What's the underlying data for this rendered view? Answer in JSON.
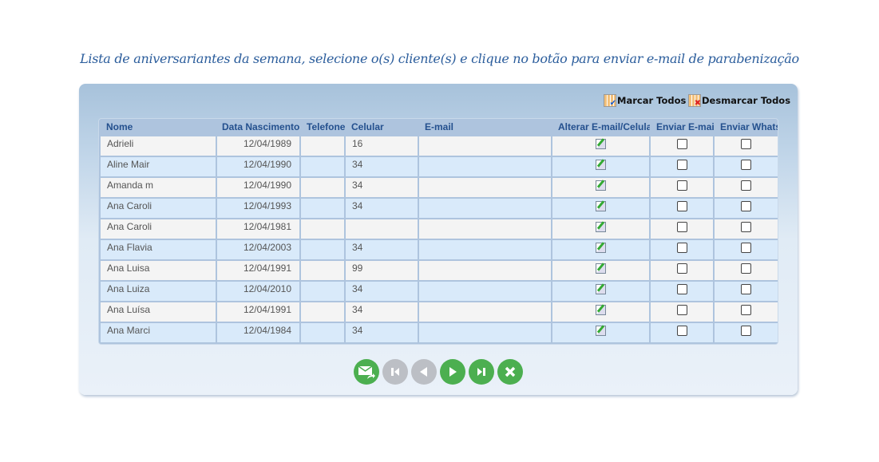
{
  "title": "Lista de aniversariantes da semana, selecione o(s) cliente(s) e clique no botão para enviar e-mail de parabenização",
  "toolbar": {
    "mark_all": "Marcar Todos",
    "unmark_all": "Desmarcar Todos"
  },
  "columns": [
    "Nome",
    "Data Nascimento",
    "Telefone",
    "Celular",
    "E-mail",
    "Alterar E-mail/Celular",
    "Enviar E-mail",
    "Enviar Whats"
  ],
  "rows": [
    {
      "nome": "Adrieli",
      "data": "12/04/1989",
      "telefone": "",
      "celular": "16",
      "email": ""
    },
    {
      "nome": "Aline Mair",
      "data": "12/04/1990",
      "telefone": "",
      "celular": "34",
      "email": ""
    },
    {
      "nome": "Amanda m",
      "data": "12/04/1990",
      "telefone": "",
      "celular": "34",
      "email": ""
    },
    {
      "nome": "Ana Caroli",
      "data": "12/04/1993",
      "telefone": "",
      "celular": "34",
      "email": ""
    },
    {
      "nome": "Ana Caroli",
      "data": "12/04/1981",
      "telefone": "",
      "celular": "",
      "email": ""
    },
    {
      "nome": "Ana Flavia",
      "data": "12/04/2003",
      "telefone": "",
      "celular": "34",
      "email": ""
    },
    {
      "nome": "Ana Luisa",
      "data": "12/04/1991",
      "telefone": "",
      "celular": "99",
      "email": ""
    },
    {
      "nome": "Ana Luiza",
      "data": "12/04/2010",
      "telefone": "",
      "celular": "34",
      "email": ""
    },
    {
      "nome": "Ana Luísa",
      "data": "12/04/1991",
      "telefone": "",
      "celular": "34",
      "email": ""
    },
    {
      "nome": "Ana Marci",
      "data": "12/04/1984",
      "telefone": "",
      "celular": "34",
      "email": ""
    }
  ],
  "nav": [
    {
      "icon": "send-email-icon",
      "enabled": true
    },
    {
      "icon": "first-page-icon",
      "enabled": false
    },
    {
      "icon": "previous-page-icon",
      "enabled": false
    },
    {
      "icon": "next-page-icon",
      "enabled": true
    },
    {
      "icon": "last-page-icon",
      "enabled": true
    },
    {
      "icon": "close-icon",
      "enabled": true
    }
  ],
  "colors": {
    "accent": "#4caf50",
    "disabled": "#bcbfc5",
    "header_text": "#24508e"
  }
}
